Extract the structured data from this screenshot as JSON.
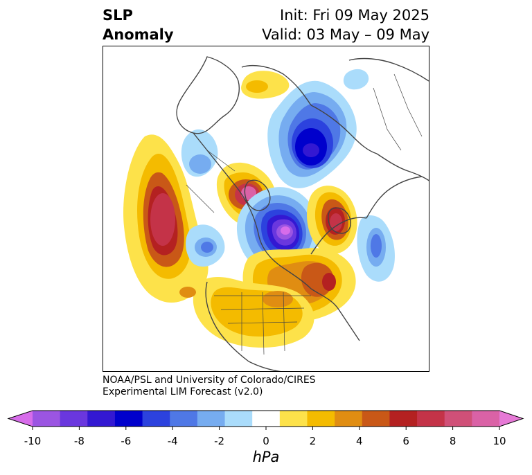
{
  "header": {
    "title_line1": "SLP",
    "title_line2": "Anomaly",
    "init_line": "Init: Fri 09 May 2025",
    "valid_line": "Valid: 03 May – 09 May"
  },
  "credit": {
    "line1": "NOAA/PSL and University of Colorado/CIRES",
    "line2": "Experimental LIM Forecast (v2.0)"
  },
  "colorbar": {
    "unit": "hPa",
    "tick_labels": [
      "-10",
      "-8",
      "-6",
      "-4",
      "-2",
      "0",
      "2",
      "4",
      "6",
      "8",
      "10"
    ],
    "colors": [
      "#d76cea",
      "#9b55e2",
      "#6a37de",
      "#3318d2",
      "#0000cc",
      "#2c42de",
      "#4f78e6",
      "#76acf0",
      "#aadcfb",
      "#ffffff",
      "#fde24a",
      "#f4bb00",
      "#e08d12",
      "#c95817",
      "#b42121",
      "#c43348",
      "#d05078",
      "#da62a6",
      "#e679d6"
    ]
  },
  "map": {
    "projection": "north-polar-stereographic",
    "coastline_color": "#444444",
    "features": [
      {
        "name": "anomaly-high-north-pacific",
        "sign": "positive",
        "peak_hpa": 7
      },
      {
        "name": "anomaly-high-siberia",
        "sign": "positive",
        "peak_hpa": 8
      },
      {
        "name": "anomaly-low-polar-east",
        "sign": "negative",
        "peak_hpa": -6
      },
      {
        "name": "anomaly-low-canada-greenland",
        "sign": "negative",
        "peak_hpa": -9
      },
      {
        "name": "anomaly-high-scandinavia",
        "sign": "positive",
        "peak_hpa": 7
      },
      {
        "name": "anomaly-high-north-atlantic",
        "sign": "positive",
        "peak_hpa": 6
      },
      {
        "name": "anomaly-high-north-america",
        "sign": "positive",
        "peak_hpa": 3
      },
      {
        "name": "anomaly-low-west-coast",
        "sign": "negative",
        "peak_hpa": -3
      },
      {
        "name": "anomaly-low-east-atlantic",
        "sign": "negative",
        "peak_hpa": -4
      }
    ]
  }
}
